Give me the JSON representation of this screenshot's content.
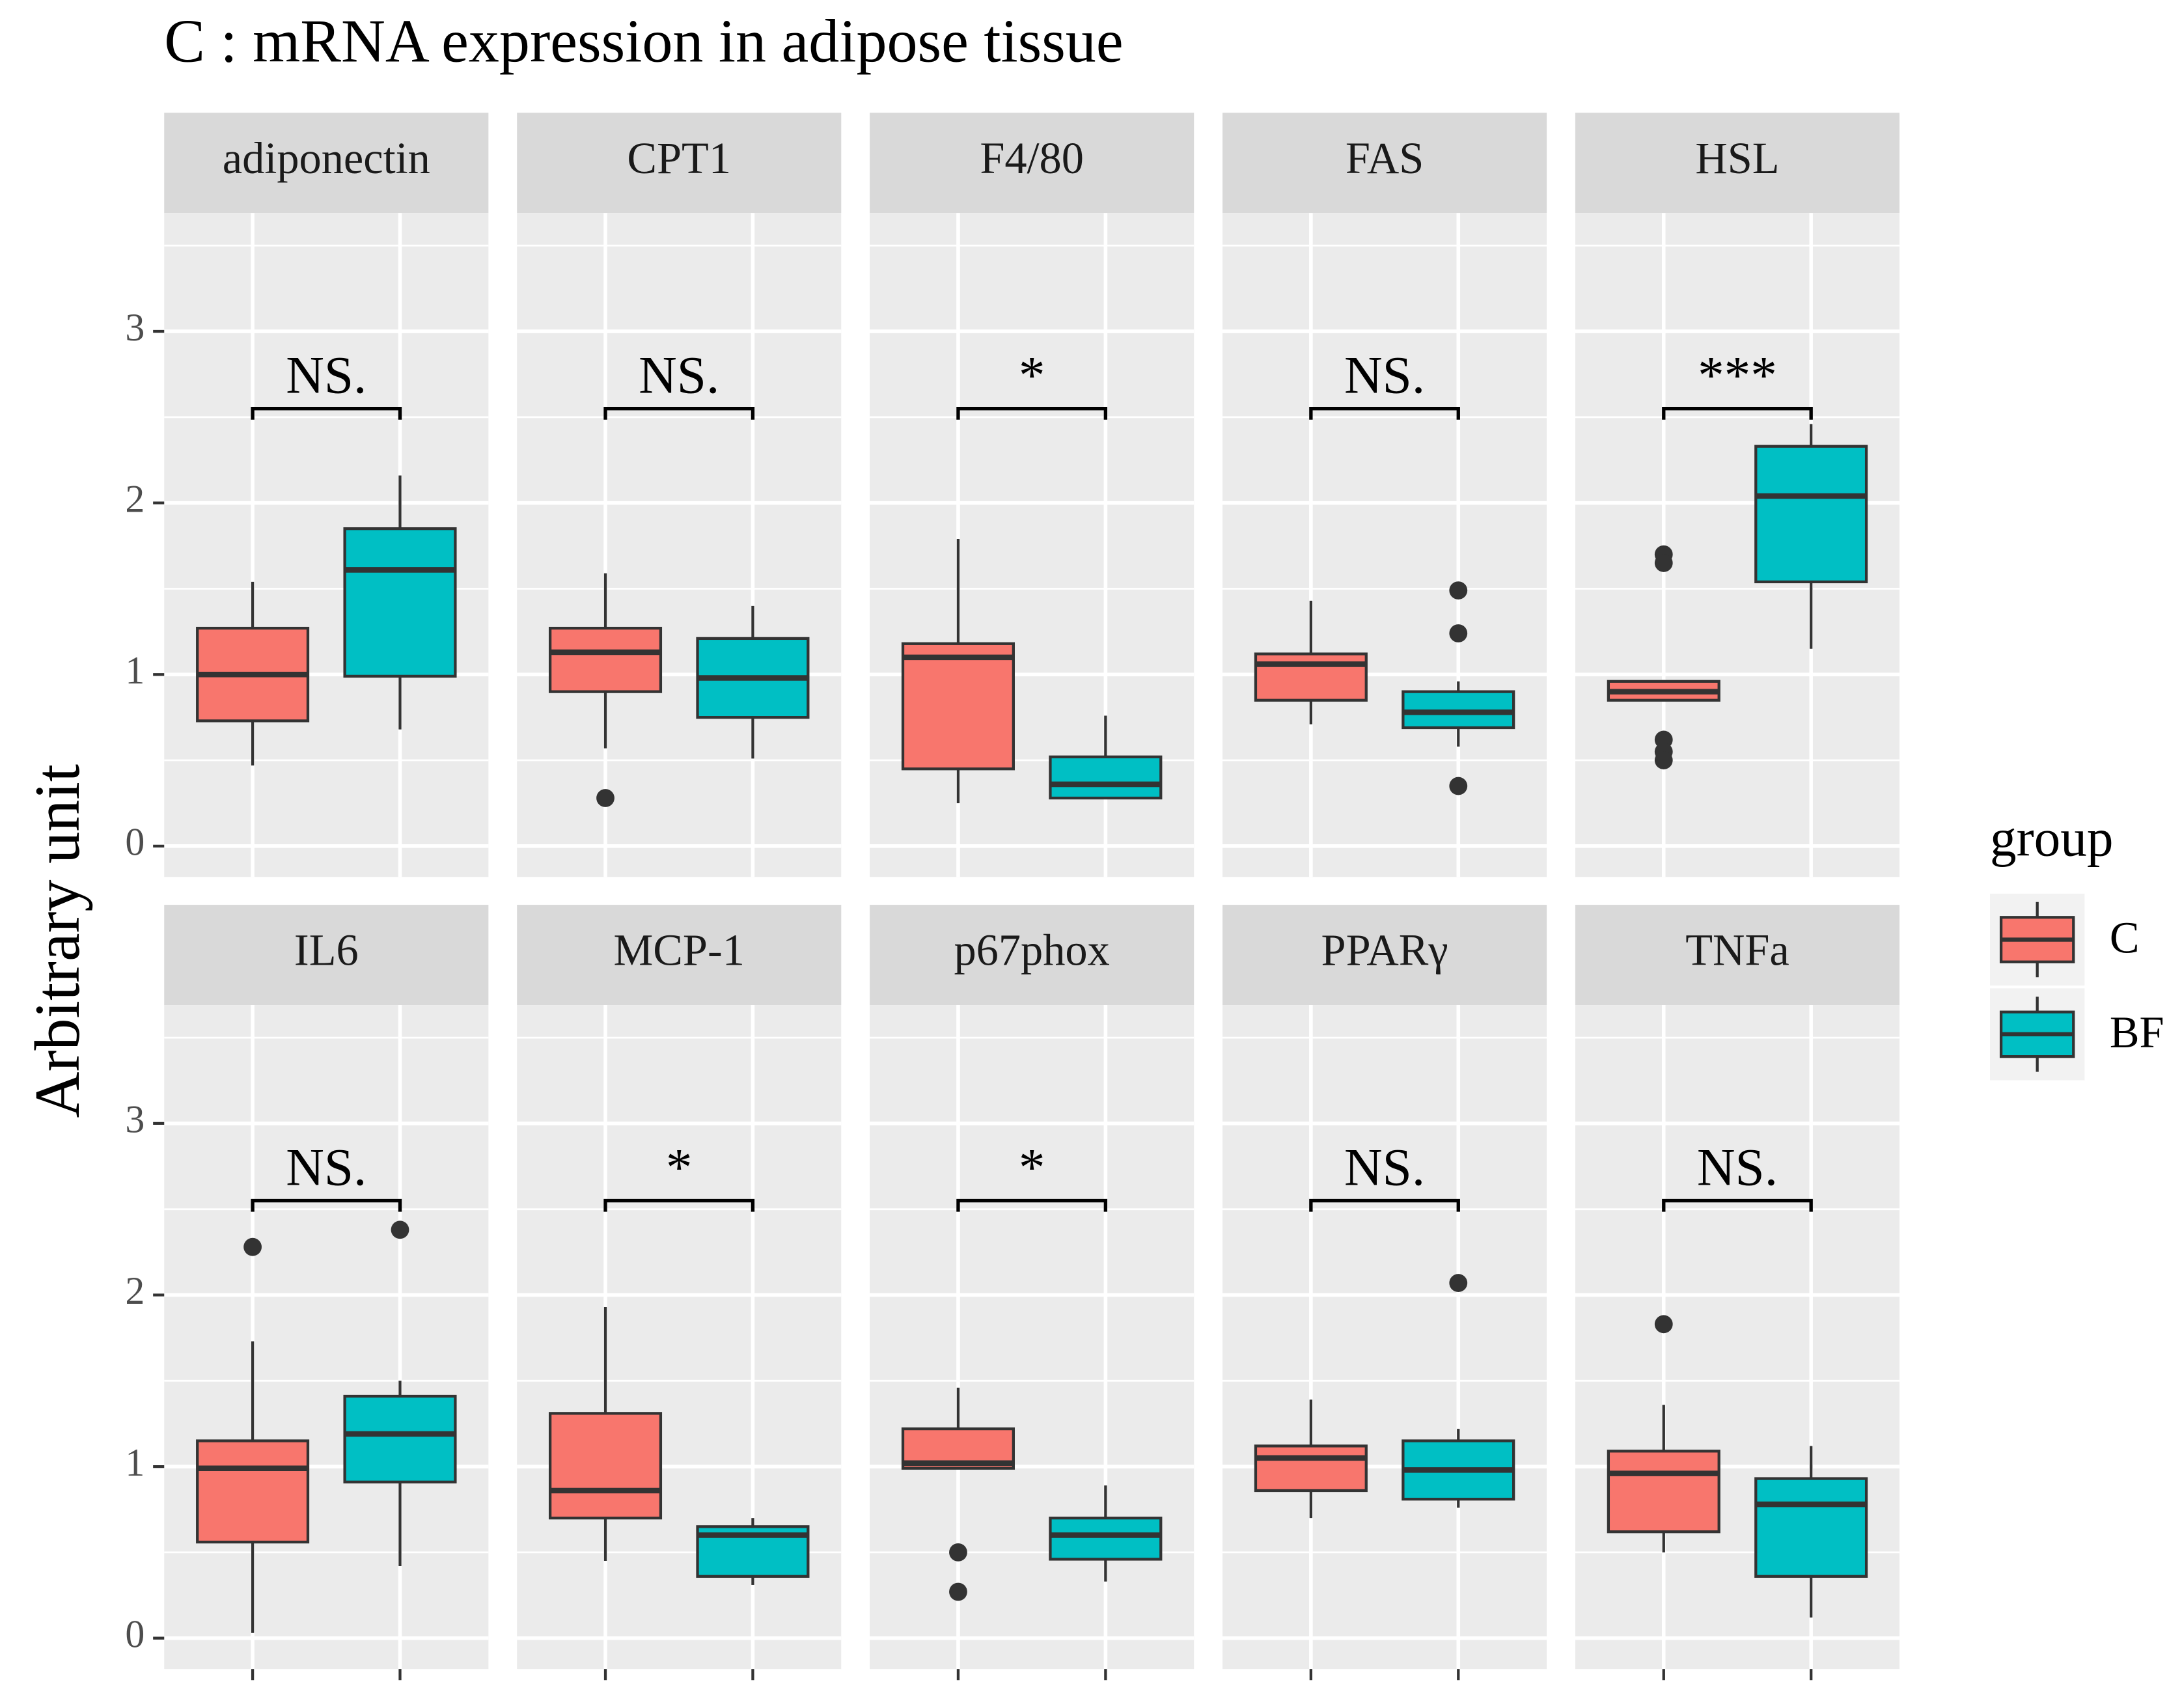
{
  "chart_data": {
    "type": "box",
    "title": "C : mRNA expression in adipose tissue",
    "ylabel": "Arbitrary unit",
    "legend_title": "group",
    "groups": [
      {
        "name": "C",
        "color": "#F8766D"
      },
      {
        "name": "BF",
        "color": "#00BFC4"
      }
    ],
    "ylim": [
      -0.18,
      3.69
    ],
    "yticks": [
      0,
      1,
      2,
      3
    ],
    "yminorticks": [
      0.5,
      1.5,
      2.5,
      3.5
    ],
    "bracket_y": 2.55,
    "grid": true,
    "panels": [
      {
        "name": "adiponectin",
        "annotation": "NS.",
        "boxes": [
          {
            "min": 0.47,
            "q1": 0.73,
            "median": 1.0,
            "q3": 1.27,
            "max": 1.54,
            "outliers": []
          },
          {
            "min": 0.68,
            "q1": 0.99,
            "median": 1.61,
            "q3": 1.85,
            "max": 2.16,
            "outliers": []
          }
        ]
      },
      {
        "name": "CPT1",
        "annotation": "NS.",
        "boxes": [
          {
            "min": 0.57,
            "q1": 0.9,
            "median": 1.13,
            "q3": 1.27,
            "max": 1.59,
            "outliers": [
              0.28
            ]
          },
          {
            "min": 0.51,
            "q1": 0.75,
            "median": 0.98,
            "q3": 1.21,
            "max": 1.4,
            "outliers": []
          }
        ]
      },
      {
        "name": "F4/80",
        "annotation": "*",
        "boxes": [
          {
            "min": 0.25,
            "q1": 0.45,
            "median": 1.1,
            "q3": 1.18,
            "max": 1.79,
            "outliers": []
          },
          {
            "min": 0.28,
            "q1": 0.28,
            "median": 0.36,
            "q3": 0.52,
            "max": 0.76,
            "outliers": []
          }
        ]
      },
      {
        "name": "FAS",
        "annotation": "NS.",
        "boxes": [
          {
            "min": 0.71,
            "q1": 0.85,
            "median": 1.06,
            "q3": 1.12,
            "max": 1.43,
            "outliers": []
          },
          {
            "min": 0.58,
            "q1": 0.69,
            "median": 0.78,
            "q3": 0.9,
            "max": 0.96,
            "outliers": [
              1.49,
              1.24,
              0.35
            ]
          }
        ]
      },
      {
        "name": "HSL",
        "annotation": "***",
        "boxes": [
          {
            "min": 0.85,
            "q1": 0.85,
            "median": 0.9,
            "q3": 0.96,
            "max": 0.96,
            "outliers": [
              1.7,
              1.65,
              0.62,
              0.55,
              0.5
            ]
          },
          {
            "min": 1.15,
            "q1": 1.54,
            "median": 2.04,
            "q3": 2.33,
            "max": 2.46,
            "outliers": []
          }
        ]
      },
      {
        "name": "IL6",
        "annotation": "NS.",
        "boxes": [
          {
            "min": 0.03,
            "q1": 0.56,
            "median": 0.99,
            "q3": 1.15,
            "max": 1.73,
            "outliers": [
              2.28
            ]
          },
          {
            "min": 0.42,
            "q1": 0.91,
            "median": 1.19,
            "q3": 1.41,
            "max": 1.5,
            "outliers": [
              2.38
            ]
          }
        ]
      },
      {
        "name": "MCP-1",
        "annotation": "*",
        "boxes": [
          {
            "min": 0.45,
            "q1": 0.7,
            "median": 0.86,
            "q3": 1.31,
            "max": 1.93,
            "outliers": []
          },
          {
            "min": 0.31,
            "q1": 0.36,
            "median": 0.6,
            "q3": 0.65,
            "max": 0.7,
            "outliers": []
          }
        ]
      },
      {
        "name": "p67phox",
        "annotation": "*",
        "boxes": [
          {
            "min": 0.99,
            "q1": 0.99,
            "median": 1.02,
            "q3": 1.22,
            "max": 1.46,
            "outliers": [
              0.5,
              0.27
            ]
          },
          {
            "min": 0.33,
            "q1": 0.46,
            "median": 0.6,
            "q3": 0.7,
            "max": 0.89,
            "outliers": []
          }
        ]
      },
      {
        "name": "PPARγ",
        "annotation": "NS.",
        "boxes": [
          {
            "min": 0.7,
            "q1": 0.86,
            "median": 1.05,
            "q3": 1.12,
            "max": 1.39,
            "outliers": []
          },
          {
            "min": 0.76,
            "q1": 0.81,
            "median": 0.98,
            "q3": 1.15,
            "max": 1.22,
            "outliers": [
              2.07
            ]
          }
        ]
      },
      {
        "name": "TNFa",
        "annotation": "NS.",
        "boxes": [
          {
            "min": 0.5,
            "q1": 0.62,
            "median": 0.96,
            "q3": 1.09,
            "max": 1.36,
            "outliers": [
              1.83
            ]
          },
          {
            "min": 0.12,
            "q1": 0.36,
            "median": 0.78,
            "q3": 0.93,
            "max": 1.12,
            "outliers": []
          }
        ]
      }
    ]
  }
}
